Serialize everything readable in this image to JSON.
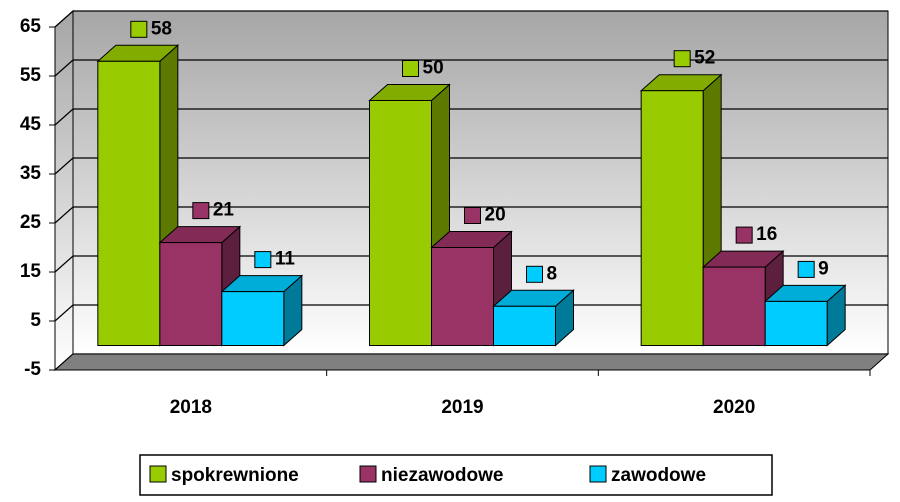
{
  "chart_data": {
    "type": "bar3d",
    "categories": [
      "2018",
      "2019",
      "2020"
    ],
    "series": [
      {
        "name": "spokrewnione",
        "color": "#99cc00",
        "values": [
          58,
          50,
          52
        ]
      },
      {
        "name": "niezawodowe",
        "color": "#993366",
        "values": [
          21,
          20,
          16
        ]
      },
      {
        "name": "zawodowe",
        "color": "#00ccff",
        "values": [
          11,
          8,
          9
        ]
      }
    ],
    "ylim": [
      -5,
      65
    ],
    "yticks": [
      -5,
      5,
      15,
      25,
      35,
      45,
      55,
      65
    ],
    "grid": true,
    "legend": "bottom"
  }
}
